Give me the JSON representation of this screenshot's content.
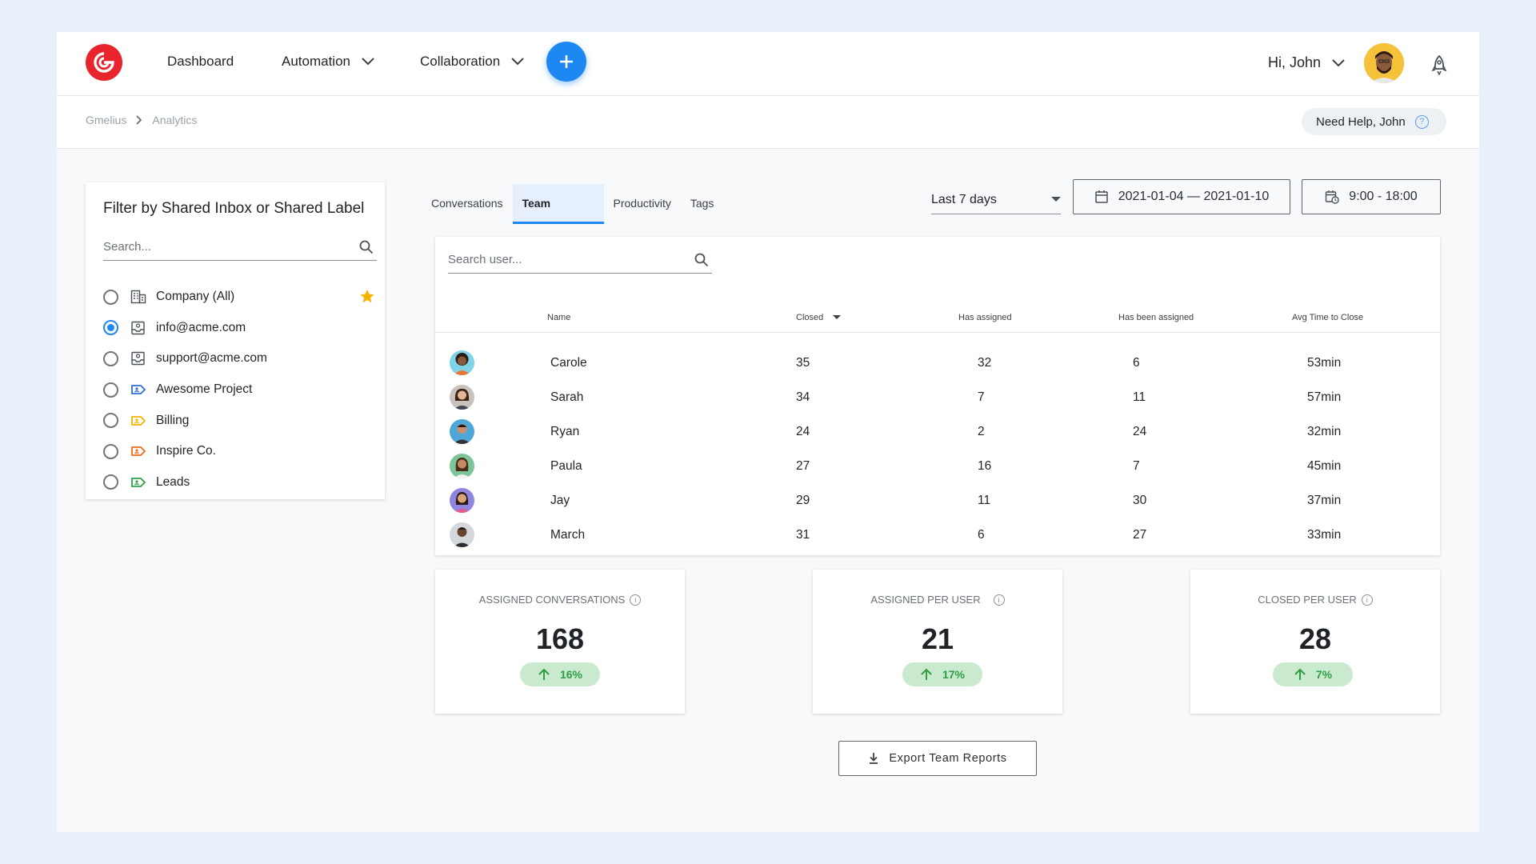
{
  "nav": {
    "items": [
      {
        "label": "Dashboard",
        "has_dropdown": false
      },
      {
        "label": "Automation",
        "has_dropdown": true
      },
      {
        "label": "Collaboration",
        "has_dropdown": true
      }
    ],
    "greeting": "Hi, John",
    "add_icon": "plus-icon",
    "notifications_icon": "rocket-icon"
  },
  "breadcrumb": [
    "Gmelius",
    "Analytics"
  ],
  "help_label": "Need Help, John",
  "filter": {
    "title": "Filter by Shared Inbox or Shared Label",
    "search_placeholder": "Search...",
    "items": [
      {
        "label": "Company (All)",
        "icon": "building-icon",
        "selected": false,
        "starred": true
      },
      {
        "label": "info@acme.com",
        "icon": "inbox-icon",
        "selected": true,
        "starred": false
      },
      {
        "label": "support@acme.com",
        "icon": "inbox-icon",
        "selected": false,
        "starred": false
      },
      {
        "label": "Awesome Project",
        "icon": "label-icon",
        "color": "#2f6fd8",
        "selected": false,
        "starred": false
      },
      {
        "label": "Billing",
        "icon": "label-icon",
        "color": "#f4b400",
        "selected": false,
        "starred": false
      },
      {
        "label": "Inspire Co.",
        "icon": "label-icon",
        "color": "#ef6c1a",
        "selected": false,
        "starred": false
      },
      {
        "label": "Leads",
        "icon": "label-icon",
        "color": "#2e9e45",
        "selected": false,
        "starred": false
      }
    ]
  },
  "tabs": [
    {
      "label": "Conversations",
      "active": false
    },
    {
      "label": "Team",
      "active": true
    },
    {
      "label": "Productivity",
      "active": false
    },
    {
      "label": "Tags",
      "active": false
    }
  ],
  "range": {
    "selected": "Last 7 days"
  },
  "date_range": "2021-01-04 — 2021-01-10",
  "hours": "9:00 - 18:00",
  "table": {
    "search_placeholder": "Search user...",
    "columns": [
      "Name",
      "Closed",
      "Has assigned",
      "Has been assigned",
      "Avg Time to Close"
    ],
    "sort_column": "Closed",
    "rows": [
      {
        "name": "Carole",
        "closed": "35",
        "has_assigned": "32",
        "been_assigned": "6",
        "avg": "53min"
      },
      {
        "name": "Sarah",
        "closed": "34",
        "has_assigned": "7",
        "been_assigned": "11",
        "avg": "57min"
      },
      {
        "name": "Ryan",
        "closed": "24",
        "has_assigned": "2",
        "been_assigned": "24",
        "avg": "32min"
      },
      {
        "name": "Paula",
        "closed": "27",
        "has_assigned": "16",
        "been_assigned": "7",
        "avg": "45min"
      },
      {
        "name": "Jay",
        "closed": "29",
        "has_assigned": "11",
        "been_assigned": "30",
        "avg": "37min"
      },
      {
        "name": "March",
        "closed": "31",
        "has_assigned": "6",
        "been_assigned": "27",
        "avg": "33min"
      }
    ]
  },
  "stats": [
    {
      "label": "ASSIGNED CONVERSATIONS",
      "value": "168",
      "change": "16%"
    },
    {
      "label": "ASSIGNED PER USER",
      "value": "21",
      "change": "17%"
    },
    {
      "label": "CLOSED PER USER",
      "value": "28",
      "change": "7%"
    }
  ],
  "export_label": "Export Team Reports",
  "colors": {
    "accent": "#1e88f2",
    "brand": "#e8242c",
    "positive": "#2e9e45"
  }
}
